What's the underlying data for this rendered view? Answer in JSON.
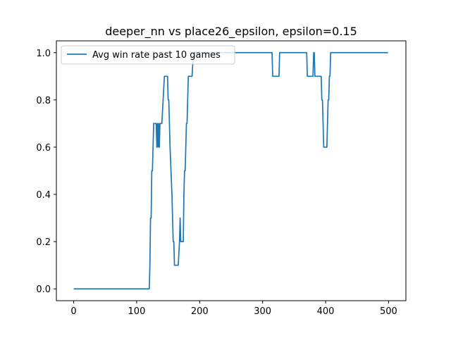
{
  "chart_data": {
    "type": "line",
    "title": "deeper_nn vs place26_epsilon, epsilon=0.15",
    "xlabel": "",
    "ylabel": "",
    "xlim": [
      -27.5,
      527.5
    ],
    "ylim": [
      -0.05,
      1.05
    ],
    "xticks": [
      0,
      100,
      200,
      300,
      400,
      500
    ],
    "xtick_labels": [
      "0",
      "100",
      "200",
      "300",
      "400",
      "500"
    ],
    "yticks": [
      0.0,
      0.2,
      0.4,
      0.6,
      0.8,
      1.0
    ],
    "ytick_labels": [
      "0.0",
      "0.2",
      "0.4",
      "0.6",
      "0.8",
      "1.0"
    ],
    "grid": false,
    "legend_position": "upper left",
    "series": [
      {
        "name": "Avg win rate past 10 games",
        "color": "#1f77b4",
        "points": [
          [
            0,
            0.0
          ],
          [
            120,
            0.0
          ],
          [
            121,
            0.1
          ],
          [
            122,
            0.3
          ],
          [
            123,
            0.3
          ],
          [
            124,
            0.5
          ],
          [
            125,
            0.5
          ],
          [
            126,
            0.6
          ],
          [
            127,
            0.7
          ],
          [
            131,
            0.7
          ],
          [
            132,
            0.6
          ],
          [
            133,
            0.7
          ],
          [
            134,
            0.6
          ],
          [
            135,
            0.7
          ],
          [
            136,
            0.6
          ],
          [
            137,
            0.7
          ],
          [
            140,
            0.7
          ],
          [
            142,
            0.8
          ],
          [
            144,
            0.9
          ],
          [
            149,
            0.9
          ],
          [
            150,
            0.8
          ],
          [
            151,
            0.8
          ],
          [
            153,
            0.6
          ],
          [
            156,
            0.4
          ],
          [
            158,
            0.2
          ],
          [
            159,
            0.2
          ],
          [
            160,
            0.1
          ],
          [
            166,
            0.1
          ],
          [
            168,
            0.2
          ],
          [
            169,
            0.3
          ],
          [
            170,
            0.2
          ],
          [
            174,
            0.2
          ],
          [
            175,
            0.4
          ],
          [
            176,
            0.5
          ],
          [
            177,
            0.5
          ],
          [
            178,
            0.6
          ],
          [
            179,
            0.7
          ],
          [
            180,
            0.7
          ],
          [
            182,
            0.9
          ],
          [
            188,
            0.9
          ],
          [
            190,
            1.0
          ],
          [
            315,
            1.0
          ],
          [
            316,
            0.9
          ],
          [
            326,
            0.9
          ],
          [
            327,
            1.0
          ],
          [
            370,
            1.0
          ],
          [
            371,
            0.9
          ],
          [
            380,
            0.9
          ],
          [
            381,
            1.0
          ],
          [
            382,
            1.0
          ],
          [
            383,
            0.9
          ],
          [
            393,
            0.9
          ],
          [
            394,
            0.8
          ],
          [
            395,
            0.8
          ],
          [
            396,
            0.7
          ],
          [
            397,
            0.6
          ],
          [
            402,
            0.6
          ],
          [
            403,
            0.7
          ],
          [
            404,
            0.8
          ],
          [
            405,
            0.8
          ],
          [
            406,
            0.9
          ],
          [
            407,
            0.9
          ],
          [
            408,
            1.0
          ],
          [
            499,
            1.0
          ]
        ]
      }
    ]
  }
}
